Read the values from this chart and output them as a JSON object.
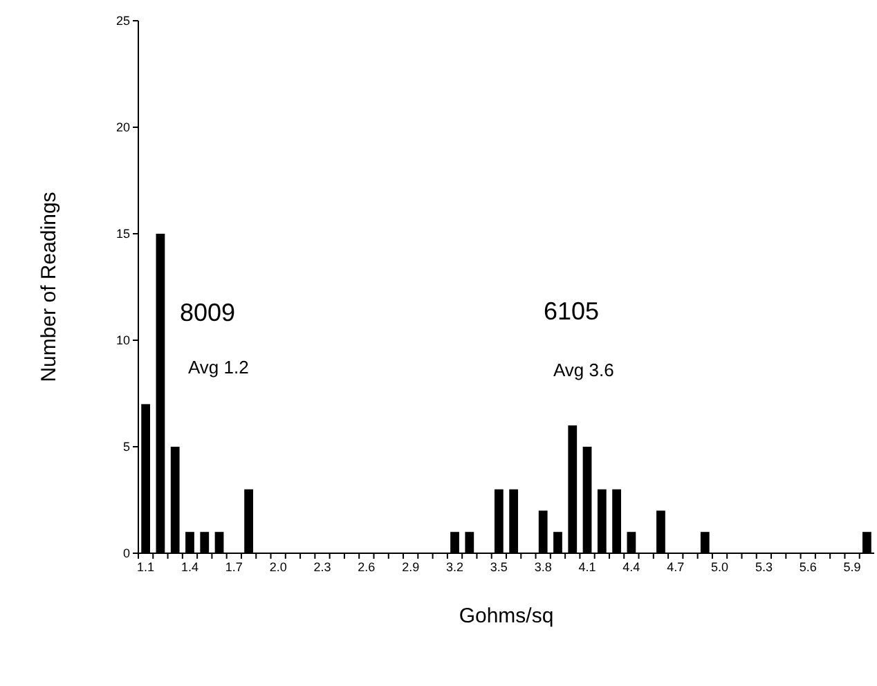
{
  "chart_data": {
    "type": "bar",
    "xlabel": "Gohms/sq",
    "ylabel": "Number of Readings",
    "categories": [
      "1.1",
      null,
      null,
      "1.4",
      null,
      null,
      "1.7",
      null,
      null,
      "2.0",
      null,
      null,
      "2.3",
      null,
      null,
      "2.6",
      null,
      null,
      "2.9",
      null,
      null,
      "3.2",
      null,
      null,
      "3.5",
      null,
      null,
      "3.8",
      null,
      null,
      "4.1",
      null,
      null,
      "4.4",
      null,
      null,
      "4.7",
      null,
      null,
      "5.0",
      null,
      null,
      "5.3",
      null,
      null,
      "5.6",
      null,
      null,
      "5.9",
      null
    ],
    "values": [
      7,
      15,
      5,
      1,
      1,
      1,
      0,
      3,
      0,
      0,
      0,
      0,
      0,
      0,
      0,
      0,
      0,
      0,
      0,
      0,
      0,
      1,
      1,
      0,
      3,
      3,
      0,
      2,
      1,
      6,
      5,
      3,
      3,
      1,
      0,
      2,
      0,
      0,
      1,
      0,
      0,
      0,
      0,
      0,
      0,
      0,
      0,
      0,
      0,
      1
    ],
    "color": "#000000",
    "ylim": [
      0,
      25
    ],
    "yticks": [
      0,
      5,
      10,
      15,
      20,
      25
    ],
    "grid": false,
    "annotations": [
      "8009",
      "Avg 1.2",
      "6105",
      "Avg 3.6"
    ]
  }
}
